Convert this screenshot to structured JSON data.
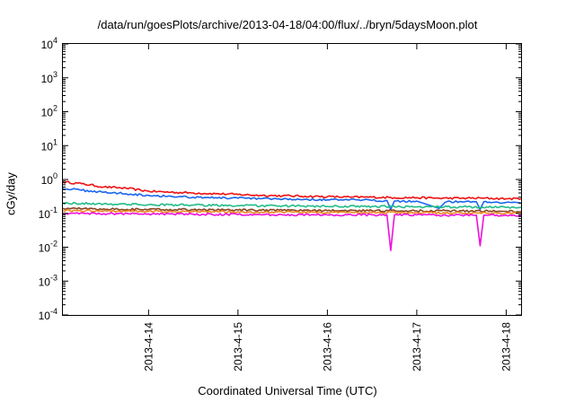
{
  "chart_data": {
    "type": "line",
    "title": "/data/run/goesPlots/archive/2013-04-18/04:00/flux/../bryn/5daysMoon.plot",
    "xlabel": "Coordinated Universal Time (UTC)",
    "ylabel": "cGy/day",
    "yscale": "log",
    "ylim": [
      0.0001,
      10000
    ],
    "xlim": [
      "2013-04-13T01:00",
      "2013-04-18T04:00"
    ],
    "grid": false,
    "legend": "none",
    "y_ticks": [
      {
        "value": 0.0001,
        "base": "10",
        "exp": "-4"
      },
      {
        "value": 0.001,
        "base": "10",
        "exp": "-3"
      },
      {
        "value": 0.01,
        "base": "10",
        "exp": "-2"
      },
      {
        "value": 0.1,
        "base": "10",
        "exp": "-1"
      },
      {
        "value": 1,
        "base": "10",
        "exp": "0"
      },
      {
        "value": 10,
        "base": "10",
        "exp": "1"
      },
      {
        "value": 100,
        "base": "10",
        "exp": "2"
      },
      {
        "value": 1000,
        "base": "10",
        "exp": "3"
      },
      {
        "value": 10000,
        "base": "10",
        "exp": "4"
      }
    ],
    "x_ticks": [
      {
        "value": "2013-04-14T00:00",
        "label": "2013-4-14"
      },
      {
        "value": "2013-04-15T00:00",
        "label": "2013-4-15"
      },
      {
        "value": "2013-04-16T00:00",
        "label": "2013-4-16"
      },
      {
        "value": "2013-04-17T00:00",
        "label": "2013-4-17"
      },
      {
        "value": "2013-04-18T00:00",
        "label": "2013-4-18"
      }
    ],
    "series": [
      {
        "color": "#ee1111",
        "points": [
          [
            "2013-04-13T01:00",
            0.85
          ],
          [
            "2013-04-13T06:00",
            0.75
          ],
          [
            "2013-04-13T12:00",
            0.6
          ],
          [
            "2013-04-13T18:00",
            0.55
          ],
          [
            "2013-04-14T00:00",
            0.45
          ],
          [
            "2013-04-14T06:00",
            0.42
          ],
          [
            "2013-04-14T12:00",
            0.4
          ],
          [
            "2013-04-14T18:00",
            0.38
          ],
          [
            "2013-04-15T00:00",
            0.36
          ],
          [
            "2013-04-15T06:00",
            0.34
          ],
          [
            "2013-04-15T12:00",
            0.33
          ],
          [
            "2013-04-15T18:00",
            0.32
          ],
          [
            "2013-04-16T00:00",
            0.31
          ],
          [
            "2013-04-16T06:00",
            0.3
          ],
          [
            "2013-04-16T12:00",
            0.3
          ],
          [
            "2013-04-16T18:00",
            0.29
          ],
          [
            "2013-04-17T00:00",
            0.29
          ],
          [
            "2013-04-17T06:00",
            0.28
          ],
          [
            "2013-04-17T12:00",
            0.28
          ],
          [
            "2013-04-17T18:00",
            0.28
          ],
          [
            "2013-04-18T00:00",
            0.27
          ],
          [
            "2013-04-18T04:00",
            0.27
          ]
        ]
      },
      {
        "color": "#1a66ee",
        "points": [
          [
            "2013-04-13T01:00",
            0.55
          ],
          [
            "2013-04-13T06:00",
            0.48
          ],
          [
            "2013-04-13T12:00",
            0.42
          ],
          [
            "2013-04-13T18:00",
            0.38
          ],
          [
            "2013-04-14T00:00",
            0.34
          ],
          [
            "2013-04-14T06:00",
            0.32
          ],
          [
            "2013-04-14T12:00",
            0.3
          ],
          [
            "2013-04-14T18:00",
            0.29
          ],
          [
            "2013-04-15T00:00",
            0.28
          ],
          [
            "2013-04-15T06:00",
            0.27
          ],
          [
            "2013-04-15T12:00",
            0.26
          ],
          [
            "2013-04-15T18:00",
            0.26
          ],
          [
            "2013-04-16T00:00",
            0.25
          ],
          [
            "2013-04-16T06:00",
            0.25
          ],
          [
            "2013-04-16T12:00",
            0.24
          ],
          [
            "2013-04-16T16:00",
            0.24
          ],
          [
            "2013-04-16T17:00",
            0.13
          ],
          [
            "2013-04-16T18:00",
            0.23
          ],
          [
            "2013-04-17T00:00",
            0.23
          ],
          [
            "2013-04-17T06:00",
            0.14
          ],
          [
            "2013-04-17T08:00",
            0.22
          ],
          [
            "2013-04-17T12:00",
            0.22
          ],
          [
            "2013-04-17T16:00",
            0.22
          ],
          [
            "2013-04-17T17:00",
            0.13
          ],
          [
            "2013-04-17T18:00",
            0.22
          ],
          [
            "2013-04-18T00:00",
            0.21
          ],
          [
            "2013-04-18T04:00",
            0.2
          ]
        ]
      },
      {
        "color": "#22bb88",
        "points": [
          [
            "2013-04-13T01:00",
            0.2
          ],
          [
            "2013-04-13T12:00",
            0.19
          ],
          [
            "2013-04-14T00:00",
            0.18
          ],
          [
            "2013-04-14T12:00",
            0.175
          ],
          [
            "2013-04-15T00:00",
            0.17
          ],
          [
            "2013-04-15T12:00",
            0.165
          ],
          [
            "2013-04-16T00:00",
            0.16
          ],
          [
            "2013-04-16T12:00",
            0.16
          ],
          [
            "2013-04-17T00:00",
            0.155
          ],
          [
            "2013-04-17T12:00",
            0.155
          ],
          [
            "2013-04-18T00:00",
            0.15
          ],
          [
            "2013-04-18T04:00",
            0.15
          ]
        ]
      },
      {
        "color": "#884422",
        "points": [
          [
            "2013-04-13T01:00",
            0.14
          ],
          [
            "2013-04-13T12:00",
            0.135
          ],
          [
            "2013-04-14T00:00",
            0.13
          ],
          [
            "2013-04-14T12:00",
            0.128
          ],
          [
            "2013-04-15T00:00",
            0.125
          ],
          [
            "2013-04-15T12:00",
            0.122
          ],
          [
            "2013-04-16T00:00",
            0.12
          ],
          [
            "2013-04-16T12:00",
            0.12
          ],
          [
            "2013-04-17T00:00",
            0.118
          ],
          [
            "2013-04-17T12:00",
            0.118
          ],
          [
            "2013-04-18T00:00",
            0.115
          ],
          [
            "2013-04-18T04:00",
            0.115
          ]
        ]
      },
      {
        "color": "#ee8822",
        "points": [
          [
            "2013-04-13T01:00",
            0.12
          ],
          [
            "2013-04-13T12:00",
            0.118
          ],
          [
            "2013-04-14T00:00",
            0.115
          ],
          [
            "2013-04-14T12:00",
            0.112
          ],
          [
            "2013-04-15T00:00",
            0.11
          ],
          [
            "2013-04-15T12:00",
            0.108
          ],
          [
            "2013-04-16T00:00",
            0.106
          ],
          [
            "2013-04-16T12:00",
            0.105
          ],
          [
            "2013-04-17T00:00",
            0.104
          ],
          [
            "2013-04-17T12:00",
            0.103
          ],
          [
            "2013-04-18T00:00",
            0.102
          ],
          [
            "2013-04-18T04:00",
            0.1
          ]
        ]
      },
      {
        "color": "#ee11dd",
        "points": [
          [
            "2013-04-13T01:00",
            0.1
          ],
          [
            "2013-04-13T12:00",
            0.098
          ],
          [
            "2013-04-14T00:00",
            0.096
          ],
          [
            "2013-04-14T12:00",
            0.094
          ],
          [
            "2013-04-15T00:00",
            0.092
          ],
          [
            "2013-04-15T12:00",
            0.09
          ],
          [
            "2013-04-16T00:00",
            0.09
          ],
          [
            "2013-04-16T12:00",
            0.09
          ],
          [
            "2013-04-16T16:00",
            0.09
          ],
          [
            "2013-04-16T17:00",
            0.008
          ],
          [
            "2013-04-16T18:00",
            0.09
          ],
          [
            "2013-04-17T00:00",
            0.09
          ],
          [
            "2013-04-17T12:00",
            0.088
          ],
          [
            "2013-04-17T16:00",
            0.088
          ],
          [
            "2013-04-17T17:00",
            0.011
          ],
          [
            "2013-04-17T18:00",
            0.088
          ],
          [
            "2013-04-18T00:00",
            0.088
          ],
          [
            "2013-04-18T04:00",
            0.088
          ]
        ]
      }
    ]
  }
}
